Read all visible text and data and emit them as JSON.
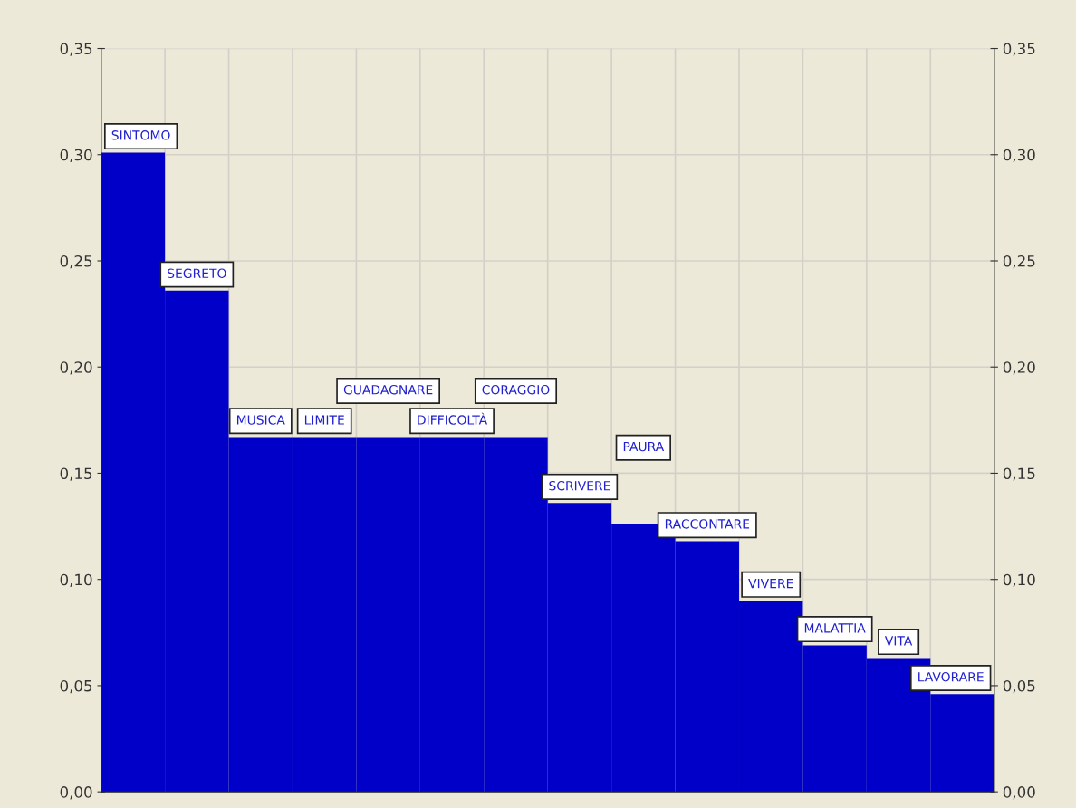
{
  "chart_data": {
    "type": "bar",
    "categories": [
      "SINTOMO",
      "SEGRETO",
      "MUSICA",
      "LIMITE",
      "GUADAGNARE",
      "DIFFICOLTÀ",
      "CORAGGIO",
      "SCRIVERE",
      "PAURA",
      "RACCONTARE",
      "VIVERE",
      "MALATTIA",
      "VITA",
      "LAVORARE"
    ],
    "values": [
      0.301,
      0.236,
      0.167,
      0.167,
      0.167,
      0.167,
      0.167,
      0.136,
      0.126,
      0.118,
      0.09,
      0.069,
      0.063,
      0.046
    ],
    "color": "#0000c8",
    "ylim": [
      0,
      0.35
    ],
    "yticks": [
      {
        "value": 0,
        "label": "0,00"
      },
      {
        "value": 0.05,
        "label": "0,05"
      },
      {
        "value": 0.1,
        "label": "0,10"
      },
      {
        "value": 0.15,
        "label": "0,15"
      },
      {
        "value": 0.2,
        "label": "0,20"
      },
      {
        "value": 0.25,
        "label": "0,25"
      },
      {
        "value": 0.3,
        "label": "0,30"
      },
      {
        "value": 0.35,
        "label": "0,35"
      }
    ],
    "y2lim": [
      0,
      0.35
    ],
    "y2ticks": [
      {
        "value": 0,
        "label": "0,00"
      },
      {
        "value": 0.05,
        "label": "0,05"
      },
      {
        "value": 0.1,
        "label": "0,10"
      },
      {
        "value": 0.15,
        "label": "0,15"
      },
      {
        "value": 0.2,
        "label": "0,20"
      },
      {
        "value": 0.25,
        "label": "0,25"
      },
      {
        "value": 0.3,
        "label": "0,30"
      },
      {
        "value": 0.35,
        "label": "0,35"
      }
    ],
    "grid": true
  }
}
